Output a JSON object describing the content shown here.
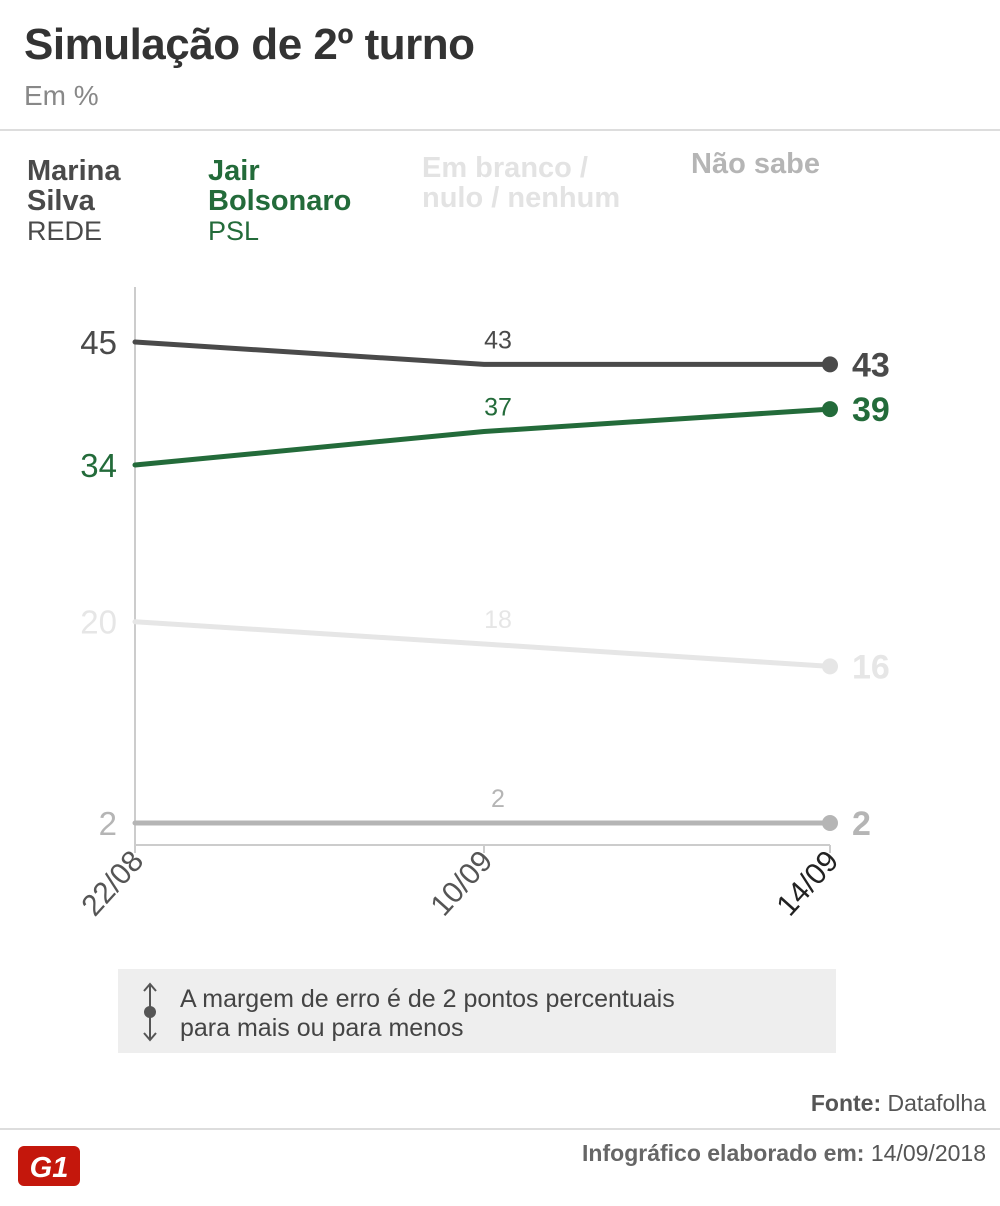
{
  "title": "Simulação de 2º turno",
  "subtitle": "Em %",
  "source_label": "Fonte:",
  "source_value": "Datafolha",
  "footer_label": "Infográfico elaborado em:",
  "footer_date": "14/09/2018",
  "note": {
    "line1": "A margem de erro é de 2 pontos percentuais",
    "line2": "para mais ou para menos"
  },
  "legend": [
    {
      "line1": "Marina",
      "line2": "Silva",
      "party": "REDE"
    },
    {
      "line1": "Jair",
      "line2": "Bolsonaro",
      "party": "PSL"
    },
    {
      "line1": "Em branco /",
      "line2": "nulo / nenhum",
      "party": ""
    },
    {
      "line1": "Não sabe",
      "line2": "",
      "party": ""
    }
  ],
  "chart_data": {
    "type": "line",
    "title": "Simulação de 2º turno",
    "subtitle": "Em %",
    "x": [
      "22/08",
      "10/09",
      "14/09"
    ],
    "series": [
      {
        "name": "Marina Silva",
        "party": "REDE",
        "color": "#4a4a4a",
        "values": [
          45,
          43,
          43
        ]
      },
      {
        "name": "Jair Bolsonaro",
        "party": "PSL",
        "color": "#236b3a",
        "values": [
          34,
          37,
          39
        ]
      },
      {
        "name": "Em branco / nulo / nenhum",
        "color": "#e6e6e6",
        "values": [
          20,
          18,
          16
        ]
      },
      {
        "name": "Não sabe",
        "color": "#b5b5b5",
        "values": [
          2,
          2,
          2
        ]
      }
    ],
    "grid": false,
    "legend_position": "top"
  },
  "colors": {
    "marina": "#4a4a4a",
    "bolsonaro": "#236b3a",
    "branco": "#e6e6e6",
    "naosabe": "#b5b5b5",
    "logo": "#c4170c"
  }
}
